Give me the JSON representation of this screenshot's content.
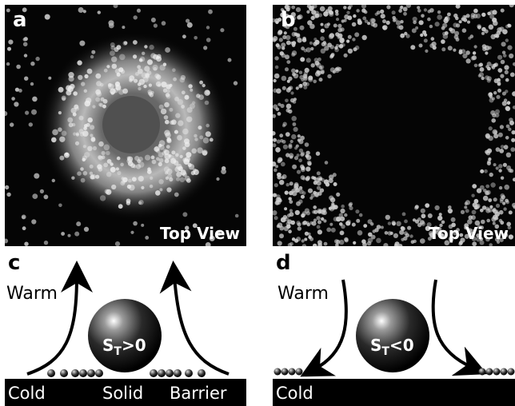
{
  "panels": {
    "a": {
      "letter": "a",
      "view_label": "Top View"
    },
    "b": {
      "letter": "b",
      "view_label": "Top View"
    },
    "c": {
      "letter": "c",
      "warm_label": "Warm",
      "sphere_label_main": "S",
      "sphere_label_sub": "T",
      "sphere_label_rel": ">0",
      "bar_labels": [
        "Cold",
        "Solid",
        "Barrier"
      ]
    },
    "d": {
      "letter": "d",
      "warm_label": "Warm",
      "sphere_label_main": "S",
      "sphere_label_sub": "T",
      "sphere_label_rel": "<0",
      "bar_labels": [
        "Cold"
      ]
    }
  }
}
